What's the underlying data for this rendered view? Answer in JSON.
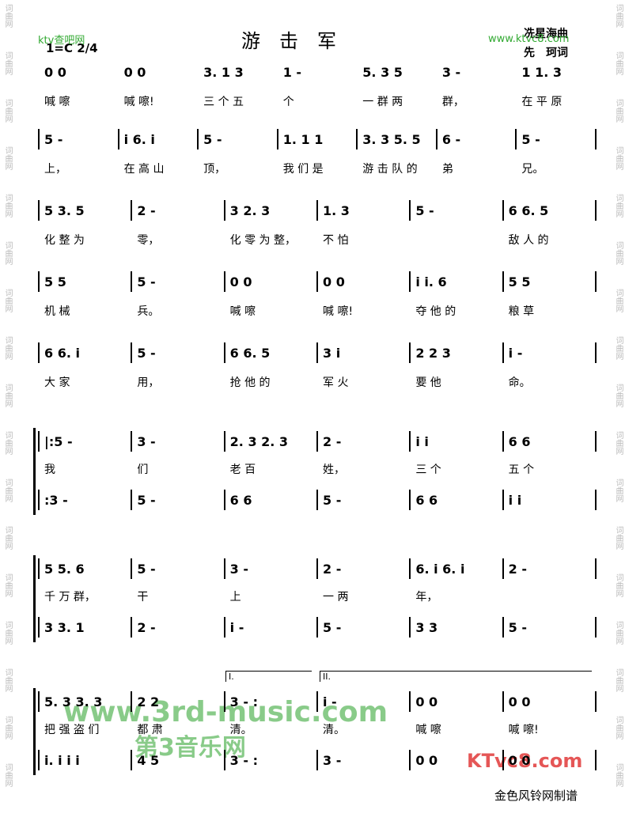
{
  "header": {
    "title": "游　击　军",
    "composer": "冼星海曲",
    "lyricist": "先　珂词",
    "key": "1=C 2/4",
    "site_mark_left": "ktv查吧网",
    "site_mark_right": "www.ktvc8.com",
    "side_mark": "词曲网"
  },
  "rows": [
    {
      "notes": [
        "0 0",
        "0 0",
        "3. 1 3",
        "1 -",
        "5. 3 5",
        "3 -",
        "1 1. 3"
      ],
      "lyrics": [
        "喊 嚓",
        "喊 嚓!",
        "三 个 五",
        "个",
        "一 群 两",
        "群，",
        "在 平 原"
      ]
    },
    {
      "notes": [
        "5 -",
        "i 6. i",
        "5 -",
        "1. 1 1",
        "3. 3 5. 5",
        "6 -",
        "5 -"
      ],
      "lyrics": [
        "上，",
        "在 高 山",
        "顶，",
        "我 们 是",
        "游 击 队 的",
        "弟",
        "兄。"
      ]
    },
    {
      "notes": [
        "5 3. 5",
        "2 -",
        "3 2. 3",
        "1. 3",
        "5 -",
        "6 6. 5"
      ],
      "lyrics": [
        "化 整 为",
        "零，",
        "化 零 为 整，",
        "不 怕",
        "",
        "敌 人 的"
      ]
    },
    {
      "notes": [
        "5 5",
        "5 -",
        "0 0",
        "0 0",
        "i i. 6",
        "5 5"
      ],
      "lyrics": [
        "机 械",
        "兵。",
        "喊 嚓",
        "喊 嚓!",
        "夺 他 的",
        "粮 草"
      ]
    },
    {
      "notes": [
        "6 6. i",
        "5 -",
        "6 6. 5",
        "3 i",
        "2 2 3",
        "i -"
      ],
      "lyrics": [
        "大 家",
        "用，",
        "抢 他 的",
        "军 火",
        "要 他",
        "命。"
      ]
    }
  ],
  "systems": [
    {
      "upper": [
        "|:5 -",
        "3 -",
        "2. 3 2. 3",
        "2 -",
        "i i",
        "6 6"
      ],
      "lyrics": [
        "我",
        "们",
        "老 百",
        "姓，",
        "三 个",
        "五 个"
      ],
      "lower": [
        ":3 -",
        "5 -",
        "6 6",
        "5 -",
        "6 6",
        "i i"
      ]
    },
    {
      "upper": [
        "5 5. 6",
        "5 -",
        "3 -",
        "2 -",
        "6. i 6. i",
        "2 -"
      ],
      "lyrics": [
        "千 万 群，",
        "干",
        "上",
        "一 两",
        "年，",
        ""
      ],
      "lower": [
        "3 3. 1",
        "2 -",
        "i -",
        "5 -",
        "3 3",
        "5 -"
      ]
    },
    {
      "upper": [
        "5. 3 3. 3",
        "2 2",
        "3 - :",
        "i -",
        "0 0",
        "0 0"
      ],
      "lyrics": [
        "把 强 盗 们",
        "都 肃",
        "清。",
        "清。",
        "喊 嚓",
        "喊 嚓!"
      ],
      "lower": [
        "i. i i i",
        "4 5",
        "3 - :",
        "3 -",
        "0 0",
        "0 0"
      ],
      "volta": [
        "I.",
        "II."
      ]
    }
  ],
  "watermarks": {
    "center": "www.3rd-music.com",
    "center_cn": "第3音乐网",
    "logo": "KTvc8.com"
  },
  "footer": "金色风铃网制谱"
}
